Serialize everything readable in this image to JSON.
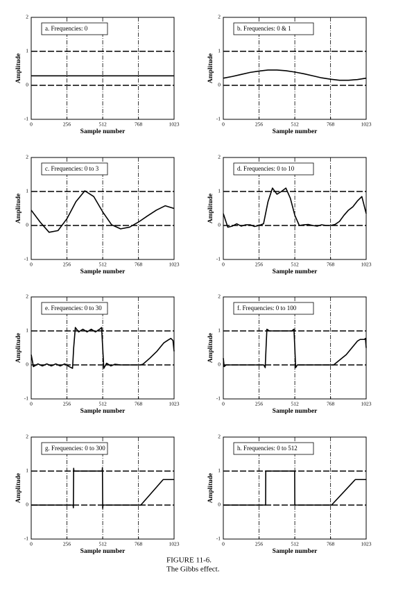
{
  "chart_data": [
    {
      "type": "line",
      "title": "a.  Frequencies:  0",
      "xlabel": "Sample number",
      "ylabel": "Amplitude",
      "xlim": [
        0,
        1023
      ],
      "ylim": [
        -1,
        2
      ],
      "xticks": [
        0,
        256,
        512,
        768,
        1023
      ],
      "yticks": [
        -1,
        0,
        1,
        2
      ],
      "grid": true,
      "color": "#000000",
      "x": [
        0,
        1023
      ],
      "values": [
        0.28,
        0.28
      ]
    },
    {
      "type": "line",
      "title": "b.  Frequencies:  0 & 1",
      "xlabel": "Sample number",
      "ylabel": "Amplitude",
      "xlim": [
        0,
        1023
      ],
      "ylim": [
        -1,
        2
      ],
      "xticks": [
        0,
        256,
        512,
        768,
        1023
      ],
      "yticks": [
        -1,
        0,
        1,
        2
      ],
      "grid": true,
      "color": "#000000",
      "x": [
        0,
        64,
        128,
        192,
        256,
        320,
        384,
        448,
        512,
        576,
        640,
        704,
        768,
        832,
        896,
        960,
        1023
      ],
      "values": [
        0.21,
        0.26,
        0.32,
        0.38,
        0.42,
        0.45,
        0.45,
        0.43,
        0.39,
        0.34,
        0.28,
        0.22,
        0.18,
        0.15,
        0.15,
        0.17,
        0.21
      ]
    },
    {
      "type": "line",
      "title": "c.  Frequencies:  0 to 3",
      "xlabel": "Sample number",
      "ylabel": "Amplitude",
      "xlim": [
        0,
        1023
      ],
      "ylim": [
        -1,
        2
      ],
      "xticks": [
        0,
        256,
        512,
        768,
        1023
      ],
      "yticks": [
        -1,
        0,
        1,
        2
      ],
      "grid": true,
      "color": "#000000",
      "x": [
        0,
        64,
        128,
        192,
        256,
        320,
        384,
        448,
        512,
        576,
        640,
        704,
        768,
        832,
        896,
        960,
        1023
      ],
      "values": [
        0.45,
        0.1,
        -0.2,
        -0.15,
        0.2,
        0.7,
        1.02,
        0.85,
        0.4,
        0.02,
        -0.1,
        -0.05,
        0.1,
        0.28,
        0.45,
        0.58,
        0.5
      ]
    },
    {
      "type": "line",
      "title": "d.  Frequencies:  0 to 10",
      "xlabel": "Sample number",
      "ylabel": "Amplitude",
      "xlim": [
        0,
        1023
      ],
      "ylim": [
        -1,
        2
      ],
      "xticks": [
        0,
        256,
        512,
        768,
        1023
      ],
      "yticks": [
        -1,
        0,
        1,
        2
      ],
      "grid": true,
      "color": "#000000",
      "x": [
        0,
        32,
        64,
        96,
        128,
        160,
        192,
        224,
        256,
        288,
        320,
        352,
        384,
        416,
        448,
        480,
        512,
        544,
        576,
        608,
        640,
        672,
        704,
        736,
        768,
        800,
        832,
        864,
        896,
        928,
        960,
        992,
        1023
      ],
      "values": [
        0.35,
        -0.05,
        -0.02,
        0.05,
        -0.02,
        0.02,
        0.02,
        -0.03,
        0.0,
        0.05,
        0.7,
        1.1,
        0.92,
        1.0,
        1.1,
        0.8,
        0.3,
        0.0,
        0.02,
        0.03,
        0.0,
        -0.02,
        0.02,
        0.0,
        0.0,
        0.03,
        0.12,
        0.3,
        0.45,
        0.55,
        0.72,
        0.85,
        0.35
      ]
    },
    {
      "type": "line",
      "title": "e.  Frequencies:  0 to 30",
      "xlabel": "Sample number",
      "ylabel": "Amplitude",
      "xlim": [
        0,
        1023
      ],
      "ylim": [
        -1,
        2
      ],
      "xticks": [
        0,
        256,
        512,
        768,
        1023
      ],
      "yticks": [
        -1,
        0,
        1,
        2
      ],
      "grid": true,
      "color": "#000000",
      "x": [
        0,
        16,
        48,
        80,
        112,
        144,
        176,
        208,
        240,
        272,
        296,
        304,
        316,
        340,
        370,
        400,
        430,
        460,
        490,
        504,
        512,
        520,
        540,
        570,
        600,
        640,
        700,
        780,
        800,
        850,
        900,
        950,
        980,
        1000,
        1015,
        1023
      ],
      "values": [
        0.3,
        -0.05,
        0.03,
        -0.03,
        0.03,
        -0.03,
        0.03,
        -0.03,
        0.03,
        -0.05,
        -0.1,
        0.5,
        1.1,
        0.97,
        1.05,
        0.97,
        1.05,
        0.97,
        1.05,
        1.1,
        0.5,
        -0.1,
        0.05,
        -0.03,
        0.02,
        0.0,
        0.0,
        0.0,
        0.02,
        0.2,
        0.4,
        0.65,
        0.73,
        0.78,
        0.72,
        0.4
      ]
    },
    {
      "type": "line",
      "title": "f.  Frequencies:  0 to 100",
      "xlabel": "Sample number",
      "ylabel": "Amplitude",
      "xlim": [
        0,
        1023
      ],
      "ylim": [
        -1,
        2
      ],
      "xticks": [
        0,
        256,
        512,
        768,
        1023
      ],
      "yticks": [
        -1,
        0,
        1,
        2
      ],
      "grid": true,
      "color": "#000000",
      "x": [
        0,
        6,
        20,
        290,
        300,
        306,
        312,
        330,
        400,
        490,
        506,
        512,
        518,
        530,
        790,
        880,
        960,
        980,
        1010,
        1018,
        1023
      ],
      "values": [
        0.2,
        -0.05,
        0.0,
        0.0,
        -0.08,
        0.5,
        1.05,
        1.0,
        1.0,
        1.0,
        1.05,
        0.5,
        -0.08,
        0.0,
        0.0,
        0.3,
        0.7,
        0.75,
        0.75,
        0.78,
        0.5
      ]
    },
    {
      "type": "line",
      "title": "g.  Frequencies:  0 to 300",
      "xlabel": "Sample number",
      "ylabel": "Amplitude",
      "xlim": [
        0,
        1023
      ],
      "ylim": [
        -1,
        2
      ],
      "xticks": [
        0,
        256,
        512,
        768,
        1023
      ],
      "yticks": [
        -1,
        0,
        1,
        2
      ],
      "grid": true,
      "color": "#000000",
      "x": [
        0,
        300,
        302,
        304,
        306,
        508,
        510,
        512,
        514,
        785,
        945,
        1023
      ],
      "values": [
        0.0,
        0.0,
        -0.08,
        1.08,
        1.0,
        1.0,
        1.1,
        -0.1,
        0.0,
        0.0,
        0.75,
        0.75
      ]
    },
    {
      "type": "line",
      "title": "h.  Frequencies:  0 to 512",
      "xlabel": "Sample number",
      "ylabel": "Amplitude",
      "xlim": [
        0,
        1023
      ],
      "ylim": [
        -1,
        2
      ],
      "xticks": [
        0,
        256,
        512,
        768,
        1023
      ],
      "yticks": [
        -1,
        0,
        1,
        2
      ],
      "grid": true,
      "color": "#000000",
      "x": [
        0,
        303,
        304,
        511,
        512,
        775,
        945,
        1023
      ],
      "values": [
        0.0,
        0.0,
        1.0,
        1.0,
        0.0,
        0.0,
        0.75,
        0.75
      ]
    }
  ],
  "figure": {
    "label": "FIGURE 11-6.",
    "caption": "The Gibbs effect."
  }
}
